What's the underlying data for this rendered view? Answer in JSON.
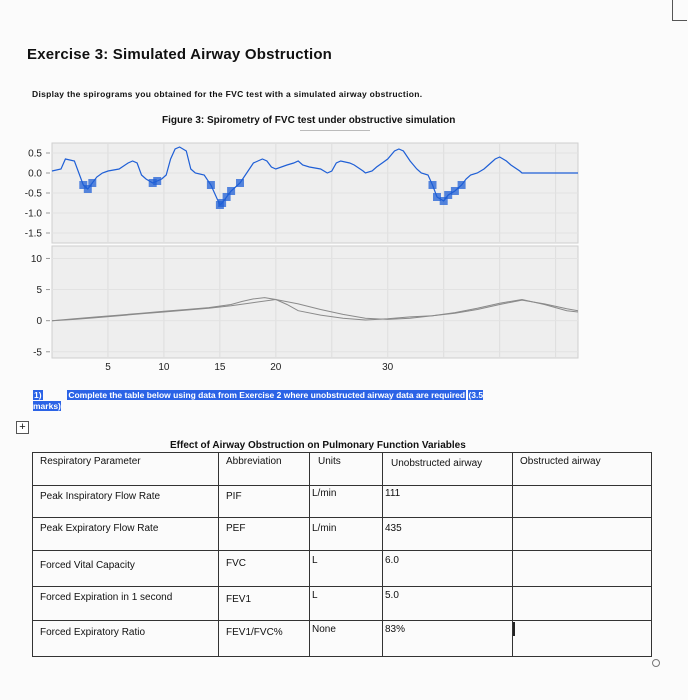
{
  "heading": "Exercise 3: Simulated Airway Obstruction",
  "instruction": "Display the spirograms you obtained for the FVC test with a simulated airway obstruction.",
  "figure_caption": "Figure 3: Spirometry of FVC test under obstructive simulation",
  "chart_data": [
    {
      "type": "line",
      "y_ticks": [
        "0.5",
        "0.0",
        "-0.5",
        "-1.0",
        "-1.5"
      ],
      "ylim": [
        -1.75,
        0.75
      ],
      "grid": true,
      "series": [
        {
          "x": [
            0,
            0.8,
            1.2,
            2,
            2.8,
            3.2,
            3.6,
            4,
            4.5,
            5,
            6,
            6.8,
            7.2,
            7.6,
            8,
            8.4,
            9,
            9.4,
            9.8,
            10.2,
            10.6,
            11,
            11.4,
            12,
            12.4,
            12.8,
            13.6,
            14.2,
            15,
            15.2,
            15.6,
            16,
            16.8,
            17.4,
            18,
            18.4,
            18.8,
            19.2,
            19.6,
            20,
            21,
            21.6,
            22,
            22.4,
            23,
            24,
            24.6,
            25,
            25.4,
            25.8,
            26.6,
            27,
            27.8,
            28,
            28.6,
            29,
            30,
            30.6,
            31,
            31.4,
            32,
            32.6,
            33,
            33.6,
            34,
            34.4,
            35,
            35.4,
            36,
            36.6,
            37,
            37.4,
            38,
            38.6,
            39,
            39.6,
            40,
            40.6,
            41,
            41.8,
            42,
            42.6,
            43,
            43.8,
            44,
            44.6,
            45,
            45.6,
            46,
            46.6,
            47
          ],
          "y": [
            0.05,
            0.1,
            0.35,
            0.3,
            -0.3,
            -0.4,
            -0.25,
            -0.1,
            0.0,
            0.05,
            0.1,
            0.25,
            0.3,
            0.25,
            -0.05,
            -0.15,
            -0.25,
            -0.2,
            -0.15,
            -0.05,
            0.35,
            0.6,
            0.65,
            0.55,
            0.1,
            0.0,
            -0.05,
            -0.3,
            -0.8,
            -0.75,
            -0.6,
            -0.45,
            -0.25,
            0.0,
            0.25,
            0.3,
            0.35,
            0.3,
            0.15,
            0.1,
            0.2,
            0.25,
            0.3,
            0.2,
            0.15,
            0.1,
            0.0,
            0.05,
            0.25,
            0.3,
            0.25,
            0.2,
            0.05,
            0.0,
            0.05,
            0.15,
            0.35,
            0.55,
            0.6,
            0.55,
            0.3,
            0.1,
            0.0,
            -0.05,
            -0.3,
            -0.6,
            -0.7,
            -0.55,
            -0.45,
            -0.3,
            -0.15,
            -0.05,
            0.0,
            0.1,
            0.2,
            0.35,
            0.4,
            0.3,
            0.2,
            0.05,
            0.0,
            0.0,
            0.0,
            0.0,
            0.0,
            0.0,
            0.0,
            0.0,
            0.0,
            0.0,
            0.0
          ]
        }
      ]
    },
    {
      "type": "line",
      "y_ticks": [
        "10",
        "5",
        "0",
        "-5"
      ],
      "x_ticks": [
        "5",
        "10",
        "15",
        "20",
        "30"
      ],
      "x_tick_values": [
        5,
        10,
        15,
        20,
        30
      ],
      "ylim": [
        -6,
        12
      ],
      "xlim": [
        0,
        47
      ],
      "grid": true,
      "series": [
        {
          "x": [
            0,
            2,
            4,
            6,
            8,
            10,
            12,
            14,
            16,
            17,
            18,
            19,
            20,
            21,
            22,
            24,
            26,
            28,
            30,
            32,
            34,
            36,
            38,
            40,
            42,
            44,
            46,
            47
          ],
          "y": [
            0,
            0.3,
            0.6,
            0.9,
            1.2,
            1.5,
            1.8,
            2.1,
            2.6,
            3.1,
            3.5,
            3.7,
            3.4,
            2.6,
            1.6,
            0.9,
            0.4,
            0.1,
            0.3,
            0.6,
            0.8,
            1.2,
            1.8,
            2.6,
            3.3,
            2.7,
            1.9,
            1.6
          ]
        },
        {
          "x": [
            0,
            2,
            4,
            6,
            8,
            10,
            12,
            14,
            16,
            18,
            20,
            22,
            24,
            26,
            28,
            30,
            32,
            34,
            36,
            38,
            40,
            42,
            44,
            46,
            47
          ],
          "y": [
            0,
            0.2,
            0.5,
            0.8,
            1.1,
            1.4,
            1.7,
            2.0,
            2.4,
            2.9,
            3.4,
            2.7,
            1.8,
            1.0,
            0.4,
            0.2,
            0.4,
            0.8,
            1.3,
            2.0,
            2.8,
            3.4,
            2.6,
            1.6,
            1.4
          ]
        }
      ]
    }
  ],
  "question": {
    "number": "1)",
    "text": "Complete the table below using data from Exercise 2 where unobstructed airway data are required",
    "marks": "(3.5 marks)",
    "marks_part1": "(3.5",
    "marks_part2": "marks)"
  },
  "table": {
    "title": "Effect of Airway Obstruction on Pulmonary Function Variables",
    "headers": {
      "parameter": "Respiratory Parameter",
      "abbreviation": "Abbreviation",
      "units": "Units",
      "unobstructed": "Unobstructed airway",
      "obstructed": "Obstructed airway"
    },
    "rows": [
      {
        "parameter": "Peak Inspiratory Flow Rate",
        "abbreviation": "PIF",
        "units": "L/min",
        "unobstructed": "111",
        "obstructed": ""
      },
      {
        "parameter": "Peak Expiratory Flow Rate",
        "abbreviation": "PEF",
        "units": "L/min",
        "unobstructed": "435",
        "obstructed": ""
      },
      {
        "parameter": "Forced Vital Capacity",
        "abbreviation": "FVC",
        "units": "L",
        "unobstructed": "6.0",
        "obstructed": ""
      },
      {
        "parameter": "Forced Expiration in 1 second",
        "abbreviation": "FEV1",
        "units": "L",
        "unobstructed": "5.0",
        "obstructed": ""
      },
      {
        "parameter": "Forced Expiratory Ratio",
        "abbreviation": "FEV1/FVC%",
        "units": "None",
        "unobstructed": "83%",
        "obstructed": ""
      }
    ]
  },
  "colors": {
    "top_trace": "#1f5fd6",
    "bottom_trace": "#8a8a8a",
    "plot_bg": "#eeeeee",
    "highlight": "#2b63e6"
  }
}
